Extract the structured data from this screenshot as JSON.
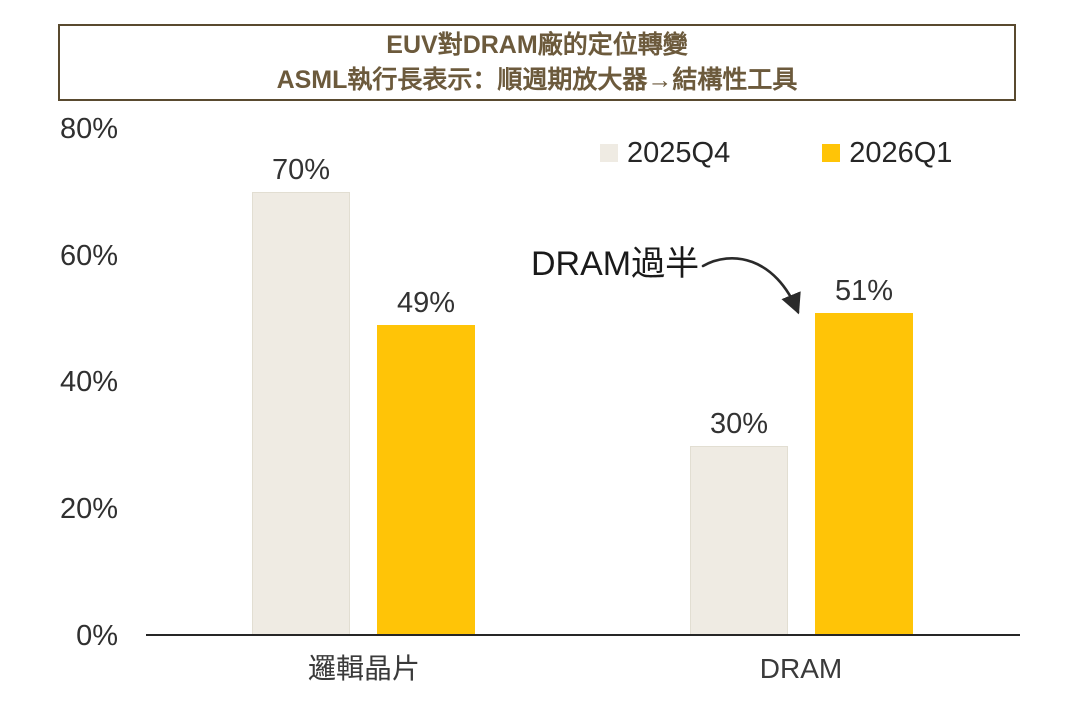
{
  "title": {
    "line1": "EUV對DRAM廠的定位轉變",
    "line2": "ASML執行長表示：順週期放大器→結構性工具",
    "text_color": "#6C5A3C",
    "border_color": "#594A2F"
  },
  "legend": [
    {
      "label": "2025Q4",
      "color": "#EFEBE3"
    },
    {
      "label": "2026Q1",
      "color": "#FFC407"
    }
  ],
  "annotation": {
    "text": "DRAM過半"
  },
  "chart_data": {
    "type": "bar",
    "title": "EUV對DRAM廠的定位轉變",
    "subtitle": "ASML執行長表示：順週期放大器→結構性工具",
    "categories": [
      "邏輯晶片",
      "DRAM"
    ],
    "series": [
      {
        "name": "2025Q4",
        "values": [
          70,
          30
        ],
        "color": "#EFEBE3",
        "border_color": "#E2DED2"
      },
      {
        "name": "2026Q1",
        "values": [
          49,
          51
        ],
        "color": "#FFC407",
        "border_color": "#FFC407"
      }
    ],
    "value_label_suffix": "%",
    "y_ticks": [
      {
        "value": 0,
        "label": "0%"
      },
      {
        "value": 20,
        "label": "20%"
      },
      {
        "value": 40,
        "label": "40%"
      },
      {
        "value": 60,
        "label": "60%"
      },
      {
        "value": 80,
        "label": "80%"
      }
    ],
    "ylim": [
      0,
      80
    ],
    "xlabel": "",
    "ylabel": "",
    "grid": false,
    "legend_position": "top-right",
    "axis_color": "#262626"
  }
}
